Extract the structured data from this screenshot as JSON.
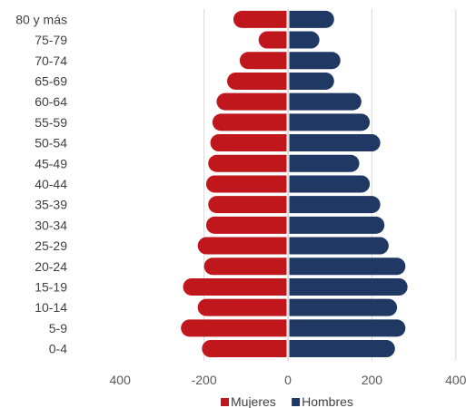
{
  "chart_data": {
    "type": "bar",
    "orientation": "horizontal",
    "subtype": "population-pyramid",
    "categories": [
      "80 y más",
      "75-79",
      "70-74",
      "65-69",
      "60-64",
      "55-59",
      "50-54",
      "45-49",
      "40-44",
      "35-39",
      "30-34",
      "25-29",
      "20-24",
      "15-19",
      "10-14",
      "5-9",
      "0-4"
    ],
    "series": [
      {
        "name": "Mujeres",
        "color": "#C0171D",
        "values": [
          -130,
          -70,
          -115,
          -145,
          -170,
          -180,
          -185,
          -190,
          -195,
          -190,
          -195,
          -215,
          -200,
          -250,
          -215,
          -255,
          -205
        ]
      },
      {
        "name": "Hombres",
        "color": "#1F3864",
        "values": [
          110,
          75,
          125,
          110,
          175,
          195,
          220,
          170,
          195,
          220,
          230,
          240,
          280,
          285,
          260,
          280,
          255
        ]
      }
    ],
    "xlim": [
      -400,
      400
    ],
    "xticks": [
      -400,
      -200,
      0,
      200,
      400
    ],
    "xtick_labels": [
      "400",
      "-200",
      "0",
      "200",
      "400"
    ],
    "grid": "vertical",
    "legend_position": "bottom"
  }
}
